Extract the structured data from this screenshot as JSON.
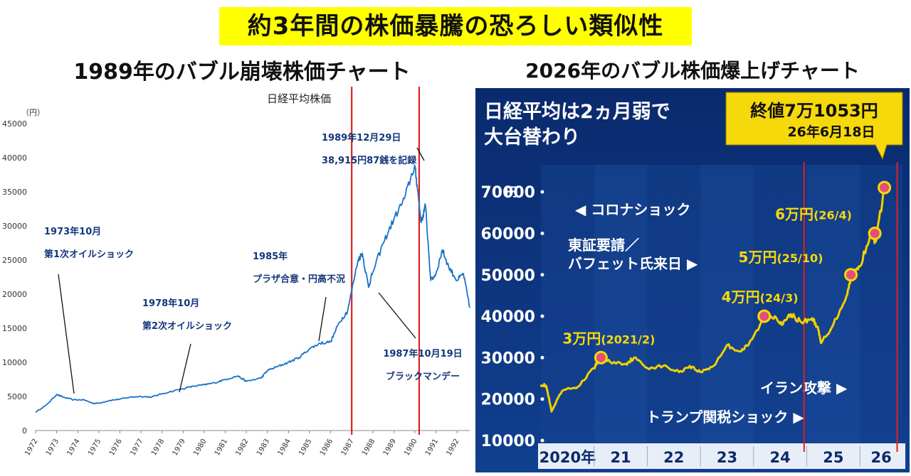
{
  "header": {
    "main_title": "約3年間の株価暴騰の恐ろしい類似性",
    "left_title": "1989年のバブル崩壊株価チャート",
    "right_title": "2026年のバブル株価爆上げチャート"
  },
  "colors": {
    "title_highlight": "#ffff00",
    "left_line": "#1a73c8",
    "annotation_text": "#14367a",
    "red_marker": "#e02020",
    "right_bg": "#0b2a6b",
    "right_line": "#f2d000",
    "right_text": "#ffffff"
  },
  "chart_data": [
    {
      "type": "line",
      "title": "日経平均株価",
      "ylabel": "（円）",
      "xlabel": "",
      "ylim": [
        0,
        45000
      ],
      "xlim": [
        1972,
        1992.6
      ],
      "grid": false,
      "yticks": [
        0,
        5000,
        10000,
        15000,
        20000,
        25000,
        30000,
        35000,
        40000,
        45000
      ],
      "ytick_labels": [
        "0",
        "5000",
        "10000",
        "15000",
        "20000",
        "25000",
        "30000",
        "35000",
        "40000",
        "45000"
      ],
      "xtick_labels": [
        "1972",
        "1973",
        "1974",
        "1975",
        "1976",
        "1977",
        "1978",
        "1979",
        "1980",
        "1981",
        "1982",
        "1983",
        "1984",
        "1985",
        "1986",
        "1987",
        "1988",
        "1989",
        "1990",
        "1991",
        "1992"
      ],
      "series": [
        {
          "x": [
            1972.0,
            1972.5,
            1973.0,
            1973.3,
            1973.8,
            1974.3,
            1974.7,
            1975.0,
            1975.5,
            1976.0,
            1976.5,
            1977.0,
            1977.5,
            1978.0,
            1978.8,
            1979.5,
            1980.0,
            1980.5,
            1981.0,
            1981.6,
            1982.0,
            1982.7,
            1983.0,
            1983.5,
            1984.0,
            1984.5,
            1985.0,
            1985.5,
            1986.0,
            1986.4,
            1986.8,
            1987.3,
            1987.5,
            1987.8,
            1987.95,
            1988.5,
            1989.0,
            1989.5,
            1989.99,
            1990.1,
            1990.3,
            1990.5,
            1990.75,
            1991.0,
            1991.3,
            1991.6,
            1992.0,
            1992.3,
            1992.6
          ],
          "values": [
            2700,
            3700,
            5300,
            4900,
            4500,
            4500,
            4000,
            4000,
            4400,
            4600,
            4900,
            5000,
            4900,
            5400,
            6000,
            6500,
            6700,
            7000,
            7500,
            8000,
            7200,
            7700,
            8800,
            9400,
            10000,
            10700,
            12000,
            12800,
            13000,
            15800,
            17500,
            25000,
            26000,
            21000,
            22800,
            27500,
            31000,
            34000,
            38915,
            36000,
            30500,
            33000,
            22000,
            23000,
            26500,
            24000,
            22000,
            23000,
            18000
          ]
        }
      ],
      "annotations": [
        {
          "line1": "1973年10月",
          "line2": "第1次オイルショック",
          "point": [
            1973.8,
            4500
          ]
        },
        {
          "line1": "1978年10月",
          "line2": "第2次オイルショック",
          "point": [
            1978.8,
            6100
          ]
        },
        {
          "line1": "1985年",
          "line2": "プラザ合意・円高不況",
          "point": [
            1985.7,
            13000
          ]
        },
        {
          "line1": "1989年12月29日",
          "line2": "38,915円87銭を記録",
          "point": [
            1990.0,
            38915
          ]
        },
        {
          "line1": "1987年10月19日",
          "line2": "ブラックマンデー",
          "point": [
            1987.8,
            20500
          ]
        }
      ],
      "vertical_markers": [
        1987.0,
        1990.2
      ]
    },
    {
      "type": "line",
      "title": "日経平均は2カ月弱で大台替わり",
      "title_lines": [
        "日経平均は2ヵ月弱で",
        "大台替わり"
      ],
      "ylabel": "円",
      "xlabel": "",
      "ylim": [
        10000,
        75000
      ],
      "xlim": [
        2020.0,
        2026.8
      ],
      "grid": false,
      "yticks": [
        10000,
        20000,
        30000,
        40000,
        50000,
        60000,
        70000
      ],
      "ytick_labels": [
        "10000",
        "20000",
        "30000",
        "40000",
        "50000",
        "60000",
        "70000"
      ],
      "xtick_labels": [
        "2020年",
        "21",
        "22",
        "23",
        "24",
        "25",
        "26"
      ],
      "series": [
        {
          "x": [
            2020.0,
            2020.1,
            2020.2,
            2020.4,
            2020.7,
            2021.0,
            2021.1,
            2021.3,
            2021.6,
            2021.75,
            2022.0,
            2022.3,
            2022.6,
            2022.8,
            2023.0,
            2023.25,
            2023.5,
            2023.75,
            2023.9,
            2024.2,
            2024.4,
            2024.55,
            2024.7,
            2024.9,
            2025.1,
            2025.2,
            2025.27,
            2025.5,
            2025.75,
            2025.85,
            2026.0,
            2026.2,
            2026.3,
            2026.46
          ],
          "values": [
            23500,
            23200,
            17000,
            22000,
            23000,
            27500,
            30000,
            29000,
            28500,
            30000,
            27500,
            28000,
            26500,
            28000,
            26500,
            28000,
            33000,
            31500,
            33000,
            39500,
            40000,
            38000,
            40500,
            38500,
            39500,
            37500,
            33500,
            38000,
            45000,
            50000,
            52000,
            60000,
            58000,
            71053
          ]
        }
      ],
      "callout": {
        "line1": "終値7万1053円",
        "line2": "26年6月18日"
      },
      "milestones": [
        {
          "label": "3万円",
          "sub": "(2021/2)",
          "x": 2021.13,
          "y": 30000
        },
        {
          "label": "4万円",
          "sub": "(24/3)",
          "x": 2024.2,
          "y": 40000
        },
        {
          "label": "5万円",
          "sub": "(25/10)",
          "x": 2025.83,
          "y": 50000
        },
        {
          "label": "6万円",
          "sub": "(26/4)",
          "x": 2026.28,
          "y": 60000
        },
        {
          "label": "",
          "sub": "",
          "x": 2026.46,
          "y": 71053
        }
      ],
      "events": [
        {
          "label": "◀ コロナショック",
          "y": 64500
        },
        {
          "label": "東証要請／",
          "y": 56000
        },
        {
          "label": "バフェット氏来日 ▶",
          "y": 51500
        },
        {
          "label": "イラン攻撃 ▶",
          "y": 21500
        },
        {
          "label": "トランプ関税ショック ▶",
          "y": 14500
        }
      ],
      "vertical_markers": [
        2024.95,
        2026.7
      ]
    }
  ]
}
